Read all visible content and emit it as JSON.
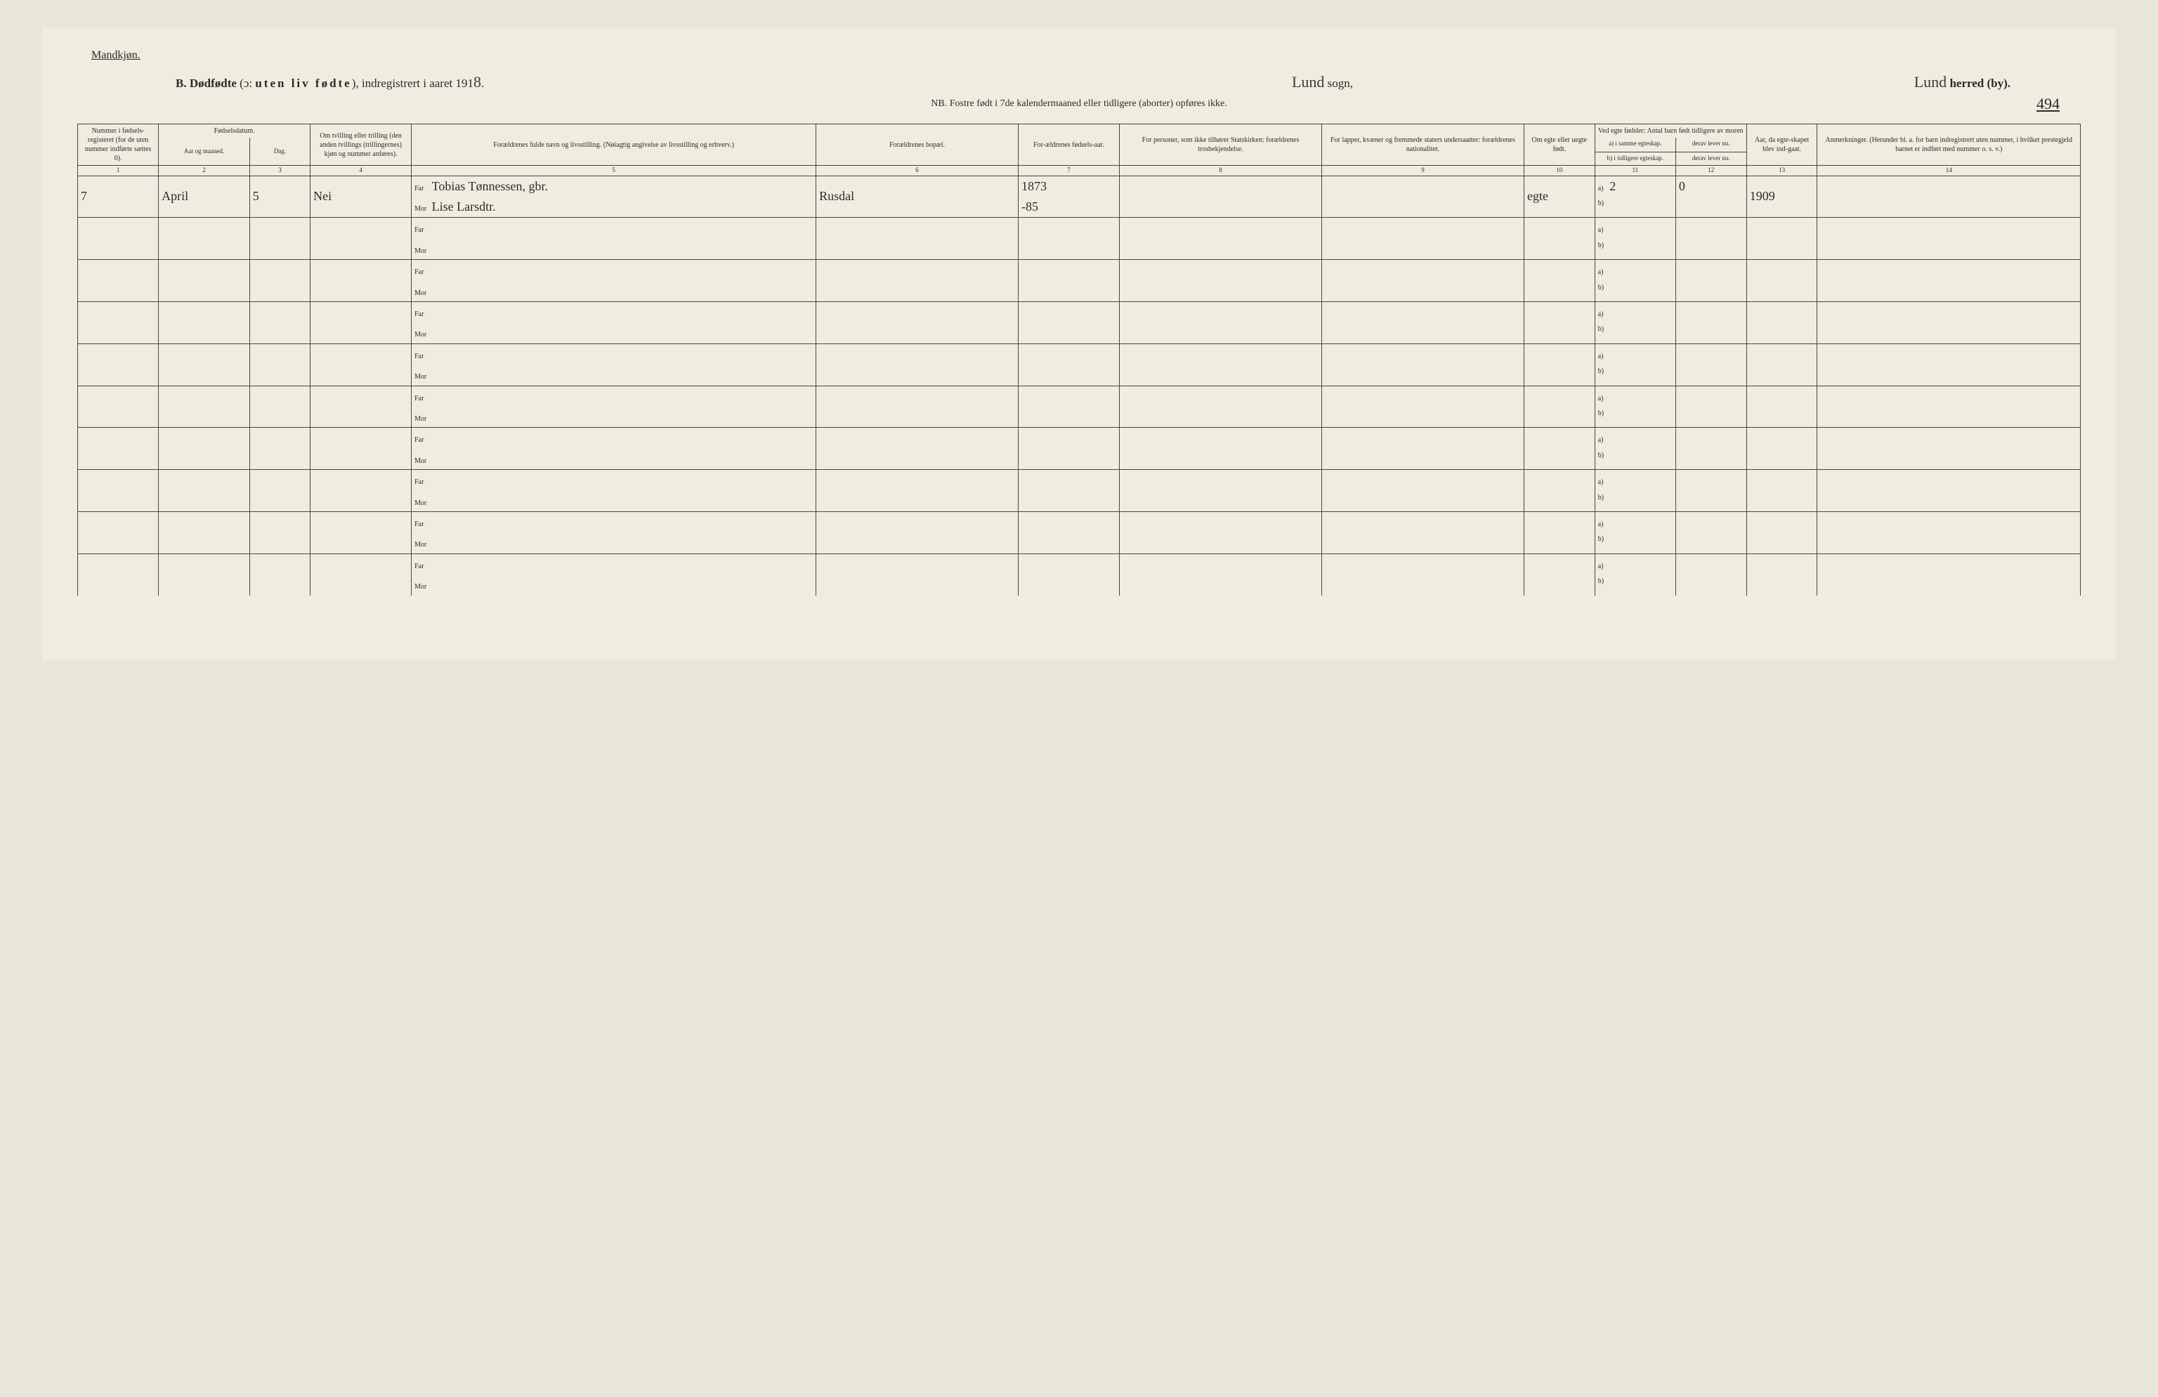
{
  "gender_label": "Mandkjøn.",
  "title": {
    "prefix": "B.",
    "main": "Dødfødte",
    "paren": "(ɔ: uten liv fødte),",
    "suffix": "indregistrert i aaret 191",
    "year_suffix_hand": "8",
    "sogn_hand": "Lund",
    "sogn_label": "sogn,",
    "herred_hand": "Lund",
    "herred_label": "herred (by)."
  },
  "subtitle": "NB.  Fostre født i 7de kalendermaaned eller tidligere (aborter) opføres ikke.",
  "page_number_hand": "494",
  "columns": {
    "c1": "Nummer i fødsels-registeret (for de uten nummer indførte sættes 0).",
    "c2_3_group": "Fødselsdatum.",
    "c2": "Aar og maaned.",
    "c3": "Dag.",
    "c4": "Om tvilling eller trilling (den anden tvillings (trillingernes) kjøn og nummer anføres).",
    "c5": "Forældrenes fulde navn og livsstilling. (Nøiagtig angivelse av livsstilling og erhverv.)",
    "c6": "Forældrenes bopæl.",
    "c7": "For-ældrenes fødsels-aar.",
    "c8": "For personer, som ikke tilhører Statskirken: forældrenes trosbekjendelse.",
    "c9": "For lapper, kvæner og fremmede staters undersaatter: forældrenes nationalitet.",
    "c10": "Om egte eller uegte født.",
    "c11_group": "Ved egte fødsler: Antal barn født tidligere av moren",
    "c11a": "a) i samme egteskap.",
    "c11b": "b) i tidligere egteskap.",
    "c12": "derav lever nu.",
    "c12b": "derav lever nu.",
    "c13": "Aar, da egte-skapet blev ind-gaat.",
    "c14": "Anmerkninger. (Herunder bl. a. for barn indregistrert uten nummer, i hvilket prestegjeld barnet er indført med nummer o. s. v.)"
  },
  "colnums": [
    "1",
    "2",
    "3",
    "4",
    "5",
    "6",
    "7",
    "8",
    "9",
    "10",
    "11",
    "12",
    "13",
    "14"
  ],
  "far_label": "Far",
  "mor_label": "Mor",
  "a_label": "a)",
  "b_label": "b)",
  "row1": {
    "num": "7",
    "month": "April",
    "day": "5",
    "twin": "Nei",
    "far_name": "Tobias Tønnessen, gbr.",
    "mor_name": "Lise Larsdtr.",
    "residence": "Rusdal",
    "far_year": "1873",
    "mor_year": "-85",
    "legit": "egte",
    "prev_a": "2",
    "prev_living": "0",
    "marriage_year": "1909"
  },
  "empty_rows": 9,
  "colors": {
    "page_bg": "#f0ede0",
    "body_bg": "#e8e6d8",
    "border": "#444444",
    "text": "#2a2a2a"
  }
}
